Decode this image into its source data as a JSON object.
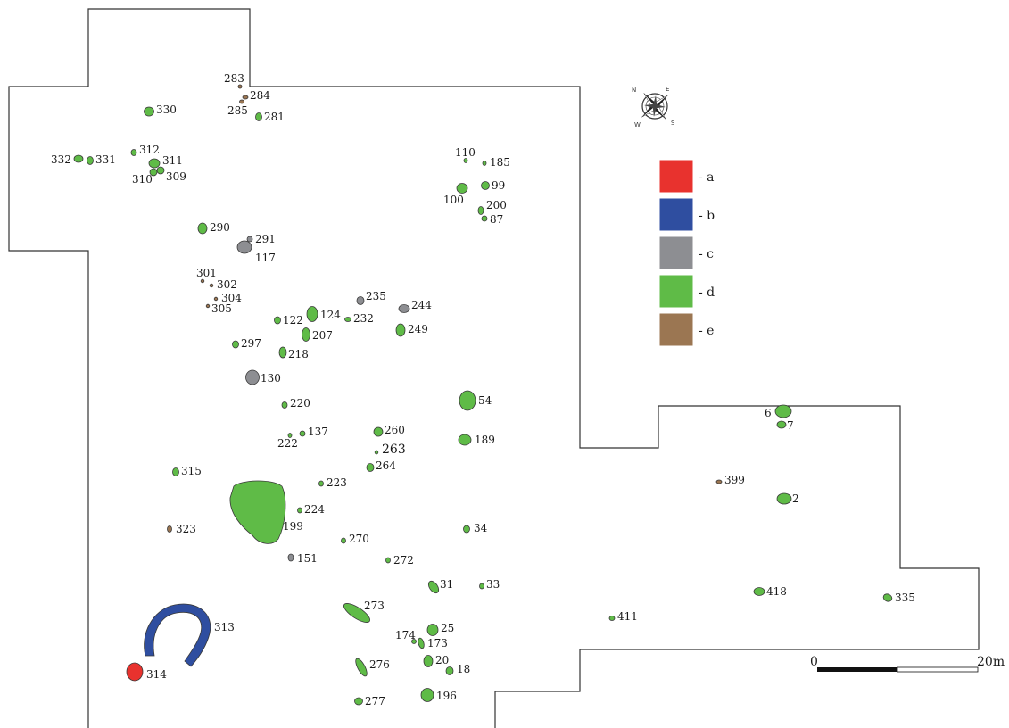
{
  "colors": {
    "a": "#e8322e",
    "b": "#2f4ea0",
    "c": "#8d8e92",
    "d": "#5fbb47",
    "e": "#9b7652"
  },
  "legend": [
    {
      "key": "a",
      "label": "- a"
    },
    {
      "key": "b",
      "label": "- b"
    },
    {
      "key": "c",
      "label": "- c"
    },
    {
      "key": "d",
      "label": "- d"
    },
    {
      "key": "e",
      "label": "- e"
    }
  ],
  "scale": {
    "start": "0",
    "end": "20m"
  },
  "compass": {
    "n": "N",
    "e": "E",
    "s": "S",
    "w": "W"
  },
  "features": [
    {
      "id": "283",
      "type": "e"
    },
    {
      "id": "284",
      "type": "e"
    },
    {
      "id": "285",
      "type": "e"
    },
    {
      "id": "281",
      "type": "d"
    },
    {
      "id": "330",
      "type": "d"
    },
    {
      "id": "332",
      "type": "d"
    },
    {
      "id": "331",
      "type": "d"
    },
    {
      "id": "312",
      "type": "d"
    },
    {
      "id": "311",
      "type": "d"
    },
    {
      "id": "310",
      "type": "d"
    },
    {
      "id": "309",
      "type": "d"
    },
    {
      "id": "110",
      "type": "d"
    },
    {
      "id": "185",
      "type": "d"
    },
    {
      "id": "100",
      "type": "d"
    },
    {
      "id": "99",
      "type": "d"
    },
    {
      "id": "200",
      "type": "d"
    },
    {
      "id": "87",
      "type": "d"
    },
    {
      "id": "290",
      "type": "d"
    },
    {
      "id": "291",
      "type": "c"
    },
    {
      "id": "117",
      "type": "c"
    },
    {
      "id": "301",
      "type": "e"
    },
    {
      "id": "302",
      "type": "e"
    },
    {
      "id": "304",
      "type": "e"
    },
    {
      "id": "305",
      "type": "e"
    },
    {
      "id": "235",
      "type": "c"
    },
    {
      "id": "244",
      "type": "c"
    },
    {
      "id": "122",
      "type": "d"
    },
    {
      "id": "124",
      "type": "d"
    },
    {
      "id": "232",
      "type": "d"
    },
    {
      "id": "249",
      "type": "d"
    },
    {
      "id": "207",
      "type": "d"
    },
    {
      "id": "297",
      "type": "d"
    },
    {
      "id": "218",
      "type": "d"
    },
    {
      "id": "130",
      "type": "c"
    },
    {
      "id": "54",
      "type": "d"
    },
    {
      "id": "220",
      "type": "d"
    },
    {
      "id": "260",
      "type": "d"
    },
    {
      "id": "189",
      "type": "d"
    },
    {
      "id": "137",
      "type": "d"
    },
    {
      "id": "222",
      "type": "d"
    },
    {
      "id": "263",
      "type": "d"
    },
    {
      "id": "264",
      "type": "d"
    },
    {
      "id": "315",
      "type": "d"
    },
    {
      "id": "223",
      "type": "d"
    },
    {
      "id": "224",
      "type": "d"
    },
    {
      "id": "199",
      "type": "d"
    },
    {
      "id": "323",
      "type": "e"
    },
    {
      "id": "34",
      "type": "d"
    },
    {
      "id": "270",
      "type": "d"
    },
    {
      "id": "151",
      "type": "c"
    },
    {
      "id": "272",
      "type": "d"
    },
    {
      "id": "31",
      "type": "d"
    },
    {
      "id": "33",
      "type": "d"
    },
    {
      "id": "273",
      "type": "d"
    },
    {
      "id": "313",
      "type": "b"
    },
    {
      "id": "174",
      "type": "d"
    },
    {
      "id": "25",
      "type": "d"
    },
    {
      "id": "173",
      "type": "d"
    },
    {
      "id": "20",
      "type": "d"
    },
    {
      "id": "18",
      "type": "d"
    },
    {
      "id": "276",
      "type": "d"
    },
    {
      "id": "314",
      "type": "a"
    },
    {
      "id": "196",
      "type": "d"
    },
    {
      "id": "277",
      "type": "d"
    },
    {
      "id": "6",
      "type": "d"
    },
    {
      "id": "7",
      "type": "d"
    },
    {
      "id": "399",
      "type": "e"
    },
    {
      "id": "2",
      "type": "d"
    },
    {
      "id": "418",
      "type": "d"
    },
    {
      "id": "335",
      "type": "d"
    },
    {
      "id": "411",
      "type": "d"
    }
  ]
}
